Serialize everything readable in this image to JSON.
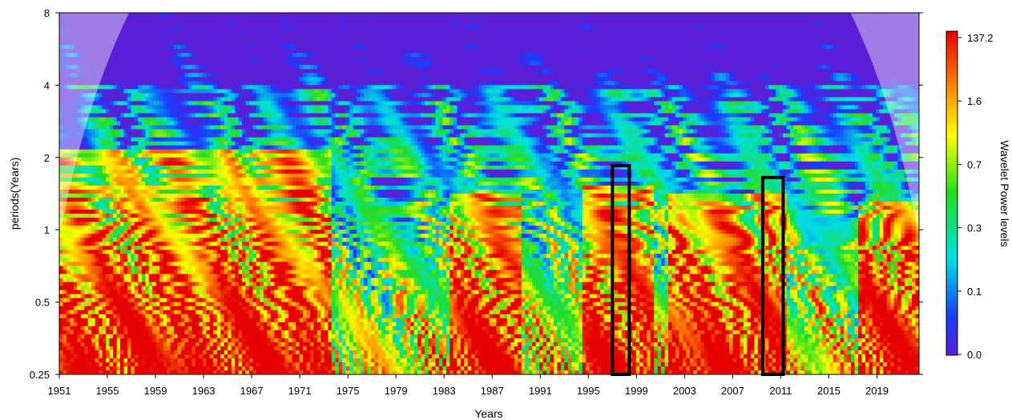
{
  "chart_data": {
    "type": "heatmap",
    "subtype": "wavelet power spectrum",
    "xlabel": "Years",
    "ylabel": "periods(Years)",
    "xlim": [
      1951,
      2022.5
    ],
    "ylim": [
      0.25,
      8
    ],
    "y_scale": "log2",
    "x_ticks": [
      "1951",
      "1955",
      "1959",
      "1963",
      "1967",
      "1971",
      "1975",
      "1979",
      "1983",
      "1987",
      "1991",
      "1995",
      "1999",
      "2003",
      "2007",
      "2011",
      "2015",
      "2019"
    ],
    "y_ticks": [
      "0.25",
      "0.5",
      "1",
      "2",
      "4",
      "8"
    ],
    "colorbar": {
      "label": "Wavelet Power levels",
      "ticks": [
        "0.0",
        "0.1",
        "0.3",
        "0.7",
        "1.6",
        "137.2"
      ],
      "colors": [
        "#5a1fd6",
        "#1a3cff",
        "#00e0e0",
        "#22dd22",
        "#ffff00",
        "#ff8c00",
        "#e60000"
      ]
    },
    "cone_of_influence": true,
    "highlight_boxes": [
      {
        "x_range": [
          1997.0,
          1998.4
        ],
        "period_range": [
          0.25,
          1.85
        ]
      },
      {
        "x_range": [
          2009.5,
          2011.2
        ],
        "period_range": [
          0.25,
          1.65
        ]
      }
    ],
    "high_power_regions": [
      {
        "x_range": [
          1951,
          1972
        ],
        "period_range": [
          0.25,
          2.2
        ]
      },
      {
        "x_range": [
          1985,
          1988
        ],
        "period_range": [
          0.25,
          1.4
        ]
      },
      {
        "x_range": [
          1996,
          1999
        ],
        "period_range": [
          0.25,
          1.5
        ]
      },
      {
        "x_range": [
          2003,
          2010
        ],
        "period_range": [
          0.25,
          1.4
        ]
      },
      {
        "x_range": [
          2019,
          2022
        ],
        "period_range": [
          0.25,
          1.3
        ]
      }
    ],
    "low_power_regions": [
      {
        "x_range": [
          1951,
          2022
        ],
        "period_range": [
          4,
          8
        ]
      }
    ]
  }
}
